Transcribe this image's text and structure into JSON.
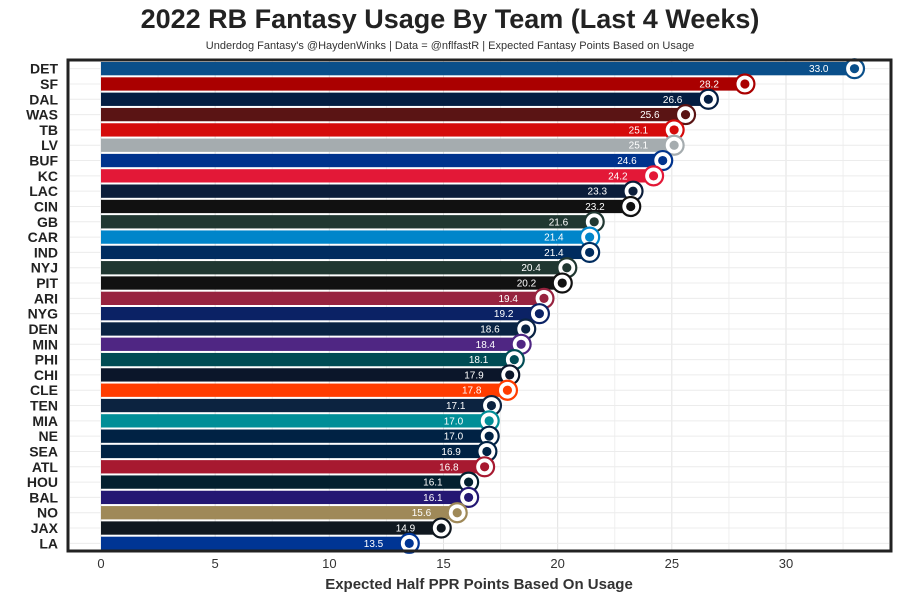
{
  "chart_data": {
    "type": "bar",
    "orientation": "horizontal",
    "title": "2022 RB Fantasy Usage By Team (Last 4 Weeks)",
    "subtitle": "Underdog Fantasy's @HaydenWinks | Data = @nflfastR | Expected Fantasy Points Based on Usage",
    "xlabel": "Expected Half PPR Points Based On Usage",
    "ylabel": "",
    "xlim": [
      0,
      34
    ],
    "xticks": [
      0,
      5,
      10,
      15,
      20,
      25,
      30
    ],
    "grid": true,
    "categories": [
      "DET",
      "SF",
      "DAL",
      "WAS",
      "TB",
      "LV",
      "BUF",
      "KC",
      "LAC",
      "CIN",
      "GB",
      "CAR",
      "IND",
      "NYJ",
      "PIT",
      "ARI",
      "NYG",
      "DEN",
      "MIN",
      "PHI",
      "CHI",
      "CLE",
      "TEN",
      "MIA",
      "NE",
      "SEA",
      "ATL",
      "HOU",
      "BAL",
      "NO",
      "JAX",
      "LA"
    ],
    "values": [
      33.0,
      28.2,
      26.6,
      25.6,
      25.1,
      25.1,
      24.6,
      24.2,
      23.3,
      23.2,
      21.6,
      21.4,
      21.4,
      20.4,
      20.2,
      19.4,
      19.2,
      18.6,
      18.4,
      18.1,
      17.9,
      17.8,
      17.1,
      17.0,
      17.0,
      16.9,
      16.8,
      16.1,
      16.1,
      15.6,
      14.9,
      13.5
    ],
    "value_labels": [
      "33.0",
      "28.2",
      "26.6",
      "25.6",
      "25.1",
      "25.1",
      "24.6",
      "24.2",
      "23.3",
      "23.2",
      "21.6",
      "21.4",
      "21.4",
      "20.4",
      "20.2",
      "19.4",
      "19.2",
      "18.6",
      "18.4",
      "18.1",
      "17.9",
      "17.8",
      "17.1",
      "17.0",
      "17.0",
      "16.9",
      "16.8",
      "16.1",
      "16.1",
      "15.6",
      "14.9",
      "13.5"
    ],
    "colors": [
      "#0a4f8a",
      "#aa0000",
      "#041e42",
      "#5a1414",
      "#d50a0a",
      "#a5acaf",
      "#00338d",
      "#e31837",
      "#0b1d3a",
      "#111111",
      "#203731",
      "#0085ca",
      "#002c5f",
      "#203731",
      "#111111",
      "#97233f",
      "#0b2265",
      "#0a2343",
      "#4f2683",
      "#004c54",
      "#0b162a",
      "#ff3c00",
      "#0c2340",
      "#008e97",
      "#002244",
      "#002244",
      "#a71930",
      "#03202f",
      "#241773",
      "#9f8958",
      "#101820",
      "#003594"
    ],
    "icons": [
      "det-lion-icon",
      "sf-logo-icon",
      "dal-star-icon",
      "was-w-icon",
      "tb-flag-icon",
      "lv-shield-icon",
      "buf-bison-icon",
      "kc-arrowhead-icon",
      "lac-bolt-icon",
      "cin-stripes-icon",
      "gb-g-icon",
      "car-panther-icon",
      "ind-horseshoe-icon",
      "nyj-jets-icon",
      "pit-steelers-icon",
      "ari-cardinal-icon",
      "nyg-ny-icon",
      "den-bronco-icon",
      "min-viking-icon",
      "phi-eagle-icon",
      "chi-c-icon",
      "cle-helmet-icon",
      "ten-titan-icon",
      "mia-dolphin-icon",
      "ne-patriot-icon",
      "sea-hawk-icon",
      "atl-falcon-icon",
      "hou-texan-icon",
      "bal-raven-icon",
      "no-fleur-icon",
      "jax-jaguar-icon",
      "la-ram-icon"
    ]
  }
}
